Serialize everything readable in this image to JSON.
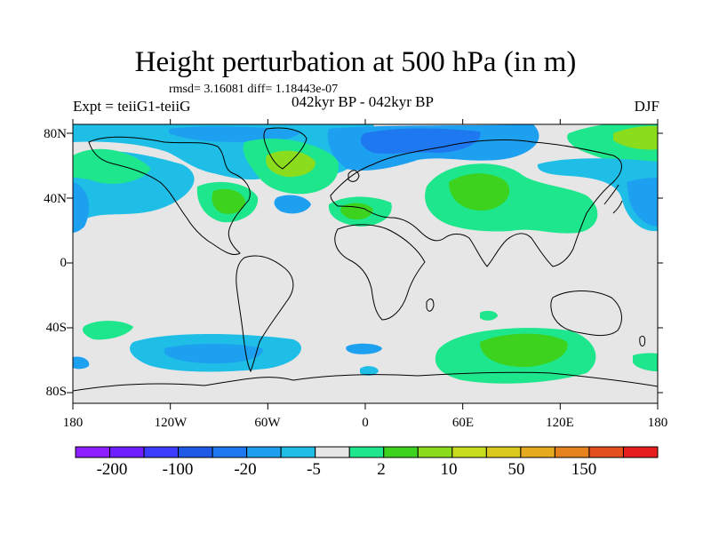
{
  "title": "Height perturbation at 500 hPa (in m)",
  "stats": "rmsd= 3.16081 diff= 1.18443e-07",
  "experiment": "Expt = teiiG1-teiiG",
  "period": "042kyr BP - 042kyr BP",
  "season": "DJF",
  "lat_labels": [
    "80N",
    "40N",
    "0",
    "40S",
    "80S"
  ],
  "lon_labels": [
    "180",
    "120W",
    "60W",
    "0",
    "60E",
    "120E",
    "180"
  ],
  "colorbar": {
    "colors": [
      "#8c1eff",
      "#6f1eff",
      "#3c3cff",
      "#1e5ae6",
      "#1e78f0",
      "#1ea0f0",
      "#1ebee6",
      "#e6e6e6",
      "#1ee68c",
      "#3cd21e",
      "#8cdc1e",
      "#c8dc1e",
      "#dcc81e",
      "#e6aa1e",
      "#e6821e",
      "#e6501e",
      "#e61e1e"
    ],
    "labels": [
      "-200",
      "-100",
      "-20",
      "-5",
      "2",
      "10",
      "50",
      "150"
    ],
    "map_colors": {
      "background": "#e6e6e6",
      "light_blue": "#1ebee6",
      "blue": "#1ea0f0",
      "dark_blue": "#1e78f0",
      "light_green": "#1ee68c",
      "green": "#3cd21e",
      "yellow_green": "#8cdc1e"
    }
  }
}
